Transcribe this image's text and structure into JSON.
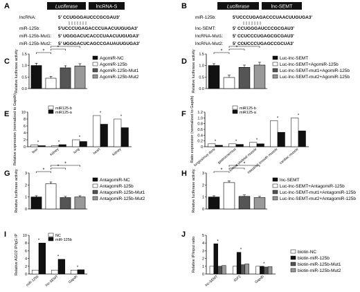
{
  "panels": {
    "A": {
      "letter": "A",
      "construct": {
        "left_box": "Luciferase",
        "right_box": "lncRNA-S"
      },
      "rows": [
        {
          "label": "lncRNA:",
          "seq": "5' CCUGGGAUCCCGCGAU3'"
        },
        {
          "label": "miR-125b:",
          "seq": "5'UCCCUGAGACCCUAACUUGUGA3'"
        },
        {
          "label": "miR-125b-Mut1:",
          "seq": "5' UGGGACUCACCCUAACUUGUGA3'"
        },
        {
          "label": "miR-125b-Mut2:",
          "seq": "5' UGGGACUCAGCCGAUAUUGUGA3'"
        }
      ]
    },
    "B": {
      "letter": "B",
      "construct": {
        "left_box": "Luciferase",
        "right_box": "lnc-SEMT"
      },
      "rows": [
        {
          "label": "miR-125b:",
          "seq": "5'UCCCUGAGACCCUAACUUGUGA3'"
        },
        {
          "label": "lnc-SEMT:",
          "seq": "5' CCUGGGAUCCCGCGAU3'"
        },
        {
          "label": "lncRNA-Mut1:",
          "seq": "5' CCUCCCUGAGCGCGAU3'"
        },
        {
          "label": "lncRNA-Mut2:",
          "seq": "5' CCUCCCUGAGCCGCUA3'"
        }
      ]
    },
    "C": {
      "letter": "C",
      "ylabel": "Relative luciferase activity",
      "star": "*"
    },
    "D": {
      "letter": "D",
      "ylabel": "Relative luciferase activity",
      "star": "*"
    },
    "E": {
      "letter": "E",
      "ylabel": "Relative expression (normalized to Gapdh)",
      "star": "*"
    },
    "F": {
      "letter": "F",
      "ylabel": "Ratio expression (normalized to Gapdh)",
      "star": "*"
    },
    "G": {
      "letter": "G",
      "ylabel": "Relative luciferase activity",
      "star": "*"
    },
    "H": {
      "letter": "H",
      "ylabel": "Relative luciferase activity",
      "star": "*"
    },
    "I": {
      "letter": "I",
      "ylabel": "Relative AGO2 IP/IgG IP",
      "star": "*"
    },
    "J": {
      "letter": "J",
      "ylabel": "Relative IP/input ratio",
      "star": "*"
    }
  },
  "chart_data": [
    {
      "id": "C",
      "type": "bar",
      "ylabel": "Relative luciferase activity",
      "categories": [
        "AgomiR-NC",
        "AgomiR-125b",
        "AgomiR-125b-Mut1",
        "AgomiR-125b-Mut2"
      ],
      "values": [
        1.0,
        0.45,
        0.9,
        0.98
      ],
      "errors": [
        0.1,
        0.08,
        0.09,
        0.1
      ],
      "colors": [
        "#111111",
        "#ffffff",
        "#555555",
        "#999999"
      ],
      "ylim": [
        0,
        1.5
      ],
      "yticks": [
        0.0,
        0.5,
        1.0,
        1.5
      ],
      "ytick_labels": [
        "0.0",
        "0.5",
        "1.0",
        "1.5"
      ],
      "legend": [
        "AgomiR-NC",
        "AgomiR-125b",
        "AgomiR-125b-Mut1",
        "AgomiR-125b-Mut2"
      ]
    },
    {
      "id": "D",
      "type": "bar",
      "ylabel": "Relative luciferase activity",
      "categories": [
        "Luc-lnc-SEMT",
        "Luc-lnc-SEMT+AgomiR-125b",
        "Luc-lnc-SEMT-mut1+AgomiR-125b",
        "Luc-lnc-SEMT-mut2+AgomiR-125b"
      ],
      "values": [
        1.0,
        0.48,
        0.92,
        1.02
      ],
      "errors": [
        0.08,
        0.1,
        0.1,
        0.12
      ],
      "colors": [
        "#111111",
        "#ffffff",
        "#555555",
        "#999999"
      ],
      "ylim": [
        0,
        1.5
      ],
      "yticks": [
        0.0,
        0.5,
        1.0,
        1.5
      ],
      "ytick_labels": [
        "0.0",
        "0.5",
        "1.0",
        "1.5"
      ],
      "legend": [
        "Luc-lnc-SEMT",
        "Luc-lnc-SEMT+AgomiR-125b",
        "Luc-lnc-SEMT-mut1+AgomiR-125b",
        "Luc-lnc-SEMT-mut2+AgomiR-125b"
      ]
    },
    {
      "id": "E",
      "type": "bar",
      "ylabel": "Relative expression (normalized to Gapdh)",
      "categories": [
        "liver",
        "kidney",
        "lung",
        "heart",
        "kidney"
      ],
      "series": [
        {
          "name": "miR125-b",
          "values": [
            0.5,
            0.3,
            2.0,
            9.0,
            8.0
          ]
        },
        {
          "name": "miR125-a",
          "values": [
            0.3,
            0.6,
            1.5,
            6.5,
            5.5
          ]
        }
      ],
      "colors": [
        "#ffffff",
        "#111111"
      ],
      "ylim": [
        0,
        10
      ],
      "yticks": [
        0,
        2,
        4,
        6,
        8,
        10
      ],
      "ytick_labels": [
        "0",
        "2",
        "4",
        "6",
        "8",
        "10"
      ],
      "legend": [
        "miR125-b",
        "miR125-a"
      ]
    },
    {
      "id": "F",
      "type": "bar",
      "ylabel": "Ratio expression (normalized to Gapdh)",
      "categories": [
        "longissimus dorsi",
        "gastrocnemius",
        "soleus skeletal muscle",
        "intestinal smooth muscle",
        "cardiac muscle"
      ],
      "series": [
        {
          "name": "miR125-b",
          "values": [
            0.1,
            0.1,
            0.15,
            0.9,
            1.0
          ]
        },
        {
          "name": "miR125-a",
          "values": [
            0.05,
            0.08,
            0.1,
            0.5,
            0.55
          ]
        }
      ],
      "colors": [
        "#ffffff",
        "#111111"
      ],
      "ylim": [
        0,
        1.2
      ],
      "yticks": [
        0,
        0.2,
        0.4,
        0.6,
        0.8,
        1.0,
        1.2
      ],
      "ytick_labels": [
        "0",
        "0.2",
        "0.4",
        "0.6",
        "0.8",
        "1.0",
        "1.2"
      ],
      "legend": [
        "miR125-b",
        "miR125-a"
      ]
    },
    {
      "id": "G",
      "type": "bar",
      "ylabel": "Relative luciferase activity",
      "categories": [
        "AntagomiR-NC",
        "AntagomiR-125b",
        "AntagomiR-125b-Mut1",
        "AntagomiR-125b-Mut2"
      ],
      "values": [
        1.0,
        2.1,
        0.95,
        1.0
      ],
      "errors": [
        0.1,
        0.15,
        0.1,
        0.1
      ],
      "colors": [
        "#111111",
        "#ffffff",
        "#555555",
        "#999999"
      ],
      "ylim": [
        0,
        3
      ],
      "yticks": [
        0,
        1,
        2,
        3
      ],
      "ytick_labels": [
        "0",
        "1",
        "2",
        "3"
      ],
      "legend": [
        "AntagomiR-NC",
        "AntagomiR-125b",
        "AntagomiR-125b-Mut1",
        "AntagomiR-125b-Mut2"
      ]
    },
    {
      "id": "H",
      "type": "bar",
      "ylabel": "Relative luciferase activity",
      "categories": [
        "lnc-SEMT",
        "Luc-lnc-SEMT+AntagomiR-125b",
        "Luc-lnc-SEMT-mut1+AntagomiR-125b",
        "Luc-lnc-SEMT-mut2+AntagomiR-125b"
      ],
      "values": [
        1.0,
        2.2,
        1.05,
        0.95
      ],
      "errors": [
        0.1,
        0.15,
        0.12,
        0.1
      ],
      "colors": [
        "#111111",
        "#ffffff",
        "#555555",
        "#999999"
      ],
      "ylim": [
        0,
        3
      ],
      "yticks": [
        0,
        1,
        2,
        3
      ],
      "ytick_labels": [
        "0",
        "1",
        "2",
        "3"
      ],
      "legend": [
        "lnc-SEMT",
        "Luc-lnc-SEMT+AntagomiR-125b",
        "Luc-lnc-SEMT-mut1+AntagomiR-125b",
        "Luc-lnc-SEMT-mut2+AntagomiR-125b"
      ]
    },
    {
      "id": "I",
      "type": "bar",
      "ylabel": "Relative AGO2 IP/IgG IP",
      "categories": [
        "miR-125b",
        "lnc-SEMT",
        "Gapdh"
      ],
      "series": [
        {
          "name": "NC",
          "values": [
            1.0,
            1.0,
            1.0
          ]
        },
        {
          "name": "miR-125b",
          "values": [
            8.0,
            3.8,
            1.1
          ]
        }
      ],
      "colors": [
        "#ffffff",
        "#111111"
      ],
      "ylim": [
        0,
        10
      ],
      "yticks": [
        0,
        2,
        4,
        6,
        8,
        10
      ],
      "ytick_labels": [
        "0",
        "2",
        "4",
        "6",
        "8",
        "10"
      ],
      "legend": [
        "NC",
        "miR-125b"
      ]
    },
    {
      "id": "J",
      "type": "bar",
      "ylabel": "Relative IP/input ratio",
      "categories": [
        "lnc-SEMT",
        "IGF2",
        "Gapdh"
      ],
      "series": [
        {
          "name": "biotin-NC",
          "values": [
            1.0,
            1.0,
            1.0
          ]
        },
        {
          "name": "biotin-miR-125b",
          "values": [
            3.9,
            2.8,
            1.0
          ]
        },
        {
          "name": "biotin-miR-125b-Mut1",
          "values": [
            1.0,
            1.2,
            0.9
          ]
        },
        {
          "name": "biotin-miR-125b-Mut2",
          "values": [
            1.1,
            1.3,
            0.95
          ]
        }
      ],
      "colors": [
        "#ffffff",
        "#111111",
        "#555555",
        "#999999"
      ],
      "ylim": [
        0,
        5
      ],
      "yticks": [
        0,
        1,
        2,
        3,
        4,
        5
      ],
      "ytick_labels": [
        "0",
        "1",
        "2",
        "3",
        "4",
        "5"
      ],
      "legend": [
        "biotin-NC",
        "biotin-miR-125b",
        "biotin-miR-125b-Mut1",
        "biotin-miR-125b-Mut2"
      ]
    }
  ]
}
